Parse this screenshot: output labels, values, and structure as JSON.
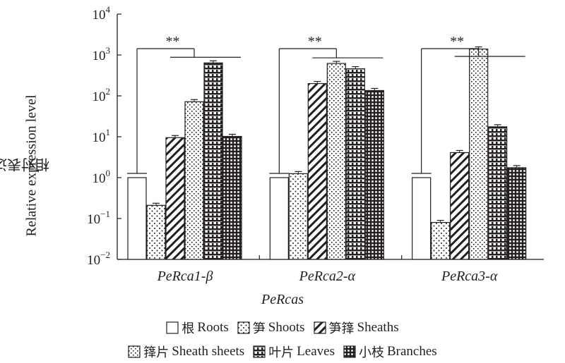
{
  "chart_data": {
    "type": "bar",
    "scale": "log10",
    "xlabel": "PeRcas",
    "ylabel_cn": "相对表达量",
    "ylabel_en": "Relative expression level",
    "ylim": [
      0.01,
      10000
    ],
    "yticks": [
      {
        "exp": "-2"
      },
      {
        "exp": "-1"
      },
      {
        "exp": "0"
      },
      {
        "exp": "1"
      },
      {
        "exp": "2"
      },
      {
        "exp": "3"
      },
      {
        "exp": "4"
      }
    ],
    "tick_base": "10",
    "categories": [
      "PeRca1-β",
      "PeRca2-α",
      "PeRca3-α"
    ],
    "significance": "**",
    "series": [
      {
        "key": "roots",
        "cn": "根",
        "en": "Roots",
        "pattern": "blank",
        "values": [
          1,
          1,
          1
        ]
      },
      {
        "key": "shoots",
        "cn": "笋",
        "en": "Shoots",
        "pattern": "dots",
        "values": [
          0.21,
          1.25,
          0.08
        ]
      },
      {
        "key": "sheaths",
        "cn": "笋箨",
        "en": "Sheaths",
        "pattern": "hatch",
        "values": [
          9.5,
          200,
          4.1
        ]
      },
      {
        "key": "sheets",
        "cn": "箨片",
        "en": "Sheath sheets",
        "pattern": "dots2",
        "values": [
          72,
          620,
          1400
        ]
      },
      {
        "key": "leaves",
        "cn": "叶片",
        "en": "Leaves",
        "pattern": "bricks",
        "values": [
          640,
          460,
          17.5
        ]
      },
      {
        "key": "branches",
        "cn": "小枝",
        "en": "Branches",
        "pattern": "grid",
        "values": [
          10.2,
          135,
          1.75
        ]
      }
    ]
  }
}
